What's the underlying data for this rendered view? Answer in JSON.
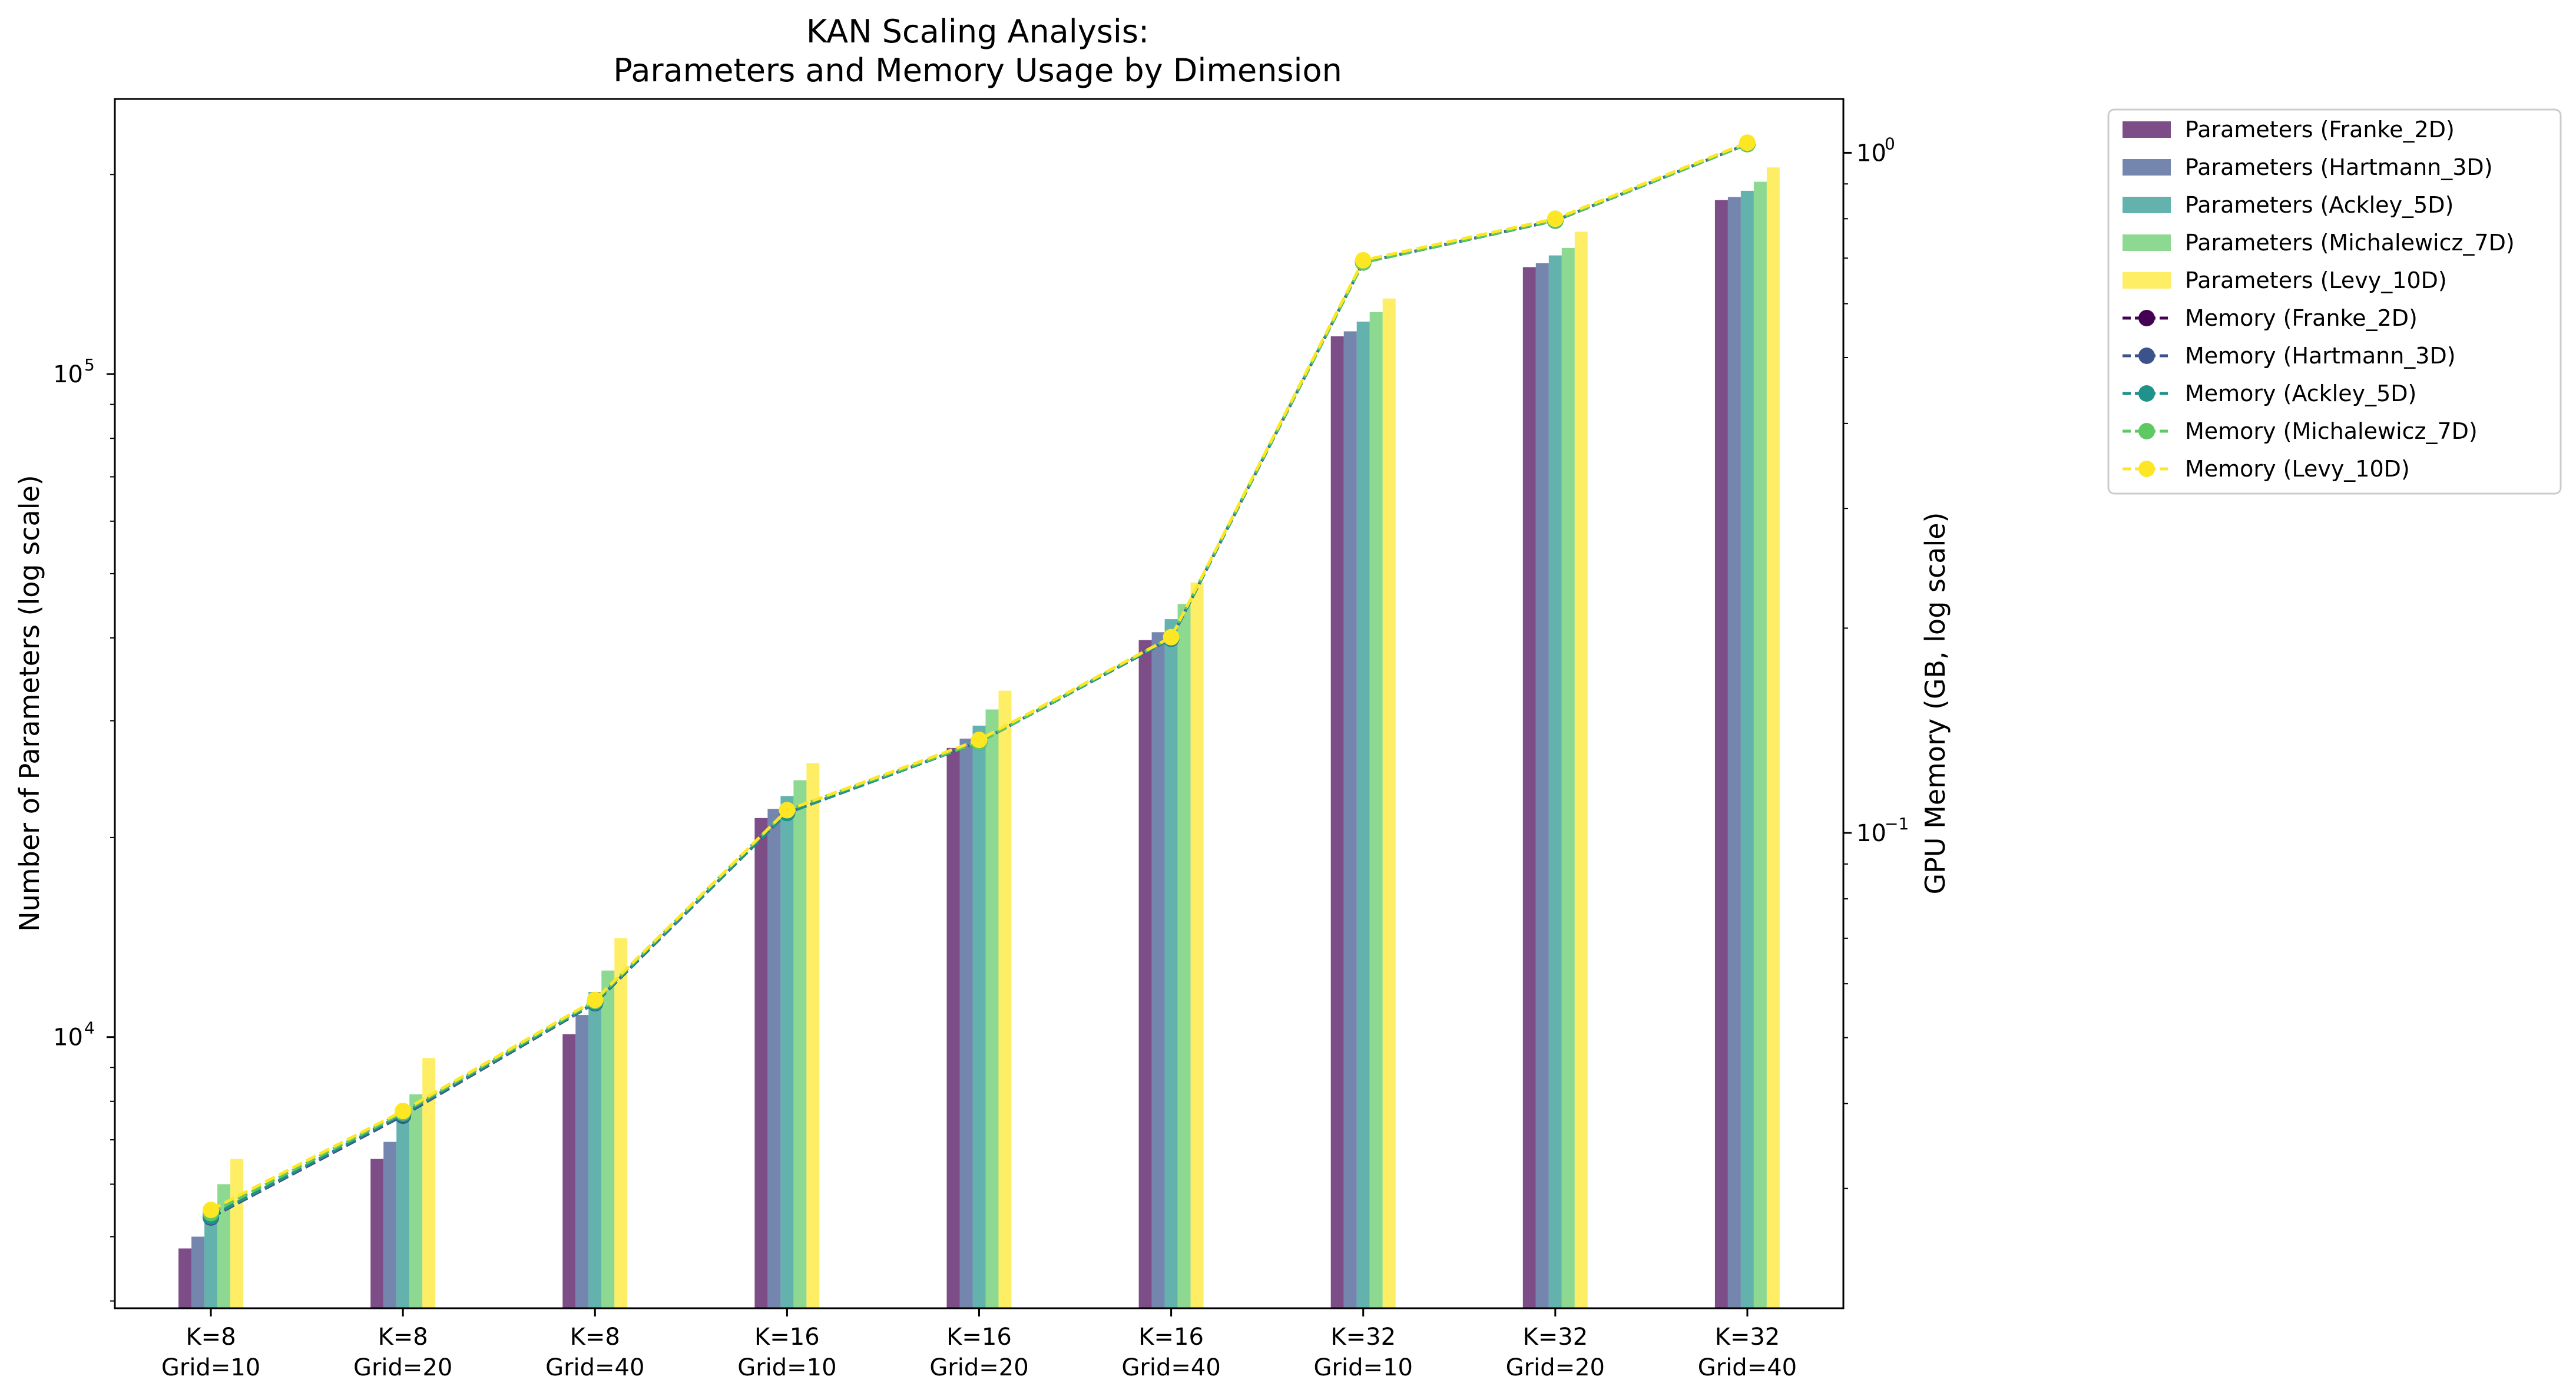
{
  "chart_data": {
    "type": "bar",
    "title_lines": [
      "KAN Scaling Analysis:",
      "Parameters and Memory Usage by Dimension"
    ],
    "categories": [
      [
        "K=8",
        "Grid=10"
      ],
      [
        "K=8",
        "Grid=20"
      ],
      [
        "K=8",
        "Grid=40"
      ],
      [
        "K=16",
        "Grid=10"
      ],
      [
        "K=16",
        "Grid=20"
      ],
      [
        "K=16",
        "Grid=40"
      ],
      [
        "K=32",
        "Grid=10"
      ],
      [
        "K=32",
        "Grid=20"
      ],
      [
        "K=32",
        "Grid=40"
      ]
    ],
    "ylabel_left": "Number of Parameters (log scale)",
    "ylabel_right": "GPU Memory (GB, log scale)",
    "y_left": {
      "scale": "log",
      "range": [
        3900,
        260000
      ],
      "major_ticks": [
        {
          "base": "10",
          "exp": "4",
          "value": 10000
        },
        {
          "base": "10",
          "exp": "5",
          "value": 100000
        }
      ]
    },
    "y_right": {
      "scale": "log",
      "range": [
        0.02,
        1.2
      ],
      "major_ticks": [
        {
          "base": "10",
          "exp": "−1",
          "value": 0.1
        },
        {
          "base": "10",
          "exp": "0",
          "value": 1
        }
      ]
    },
    "bar_series": [
      {
        "name": "Parameters (Franke_2D)",
        "color": "#440154",
        "values": [
          4800,
          6550,
          10100,
          21400,
          27300,
          39700,
          114000,
          145000,
          183000
        ]
      },
      {
        "name": "Parameters (Hartmann_3D)",
        "color": "#3b528b",
        "values": [
          5000,
          6950,
          10800,
          22100,
          28200,
          40800,
          116000,
          147000,
          185000
        ]
      },
      {
        "name": "Parameters (Ackley_5D)",
        "color": "#21918c",
        "values": [
          5500,
          7600,
          11700,
          23100,
          29500,
          42700,
          120000,
          151000,
          189000
        ]
      },
      {
        "name": "Parameters (Michalewicz_7D)",
        "color": "#5ec962",
        "values": [
          6000,
          8200,
          12600,
          24400,
          31200,
          45000,
          124000,
          155000,
          195000
        ]
      },
      {
        "name": "Parameters (Levy_10D)",
        "color": "#fde725",
        "values": [
          6550,
          9300,
          14100,
          25900,
          33300,
          48500,
          130000,
          164000,
          205000
        ]
      }
    ],
    "line_series": [
      {
        "name": "Memory (Franke_2D)",
        "color": "#440154",
        "values": [
          0.0272,
          0.0384,
          0.0562,
          0.107,
          0.136,
          0.193,
          0.69,
          0.795,
          1.03
        ]
      },
      {
        "name": "Memory (Hartmann_3D)",
        "color": "#3b528b",
        "values": [
          0.0272,
          0.0384,
          0.0562,
          0.107,
          0.136,
          0.193,
          0.69,
          0.795,
          1.03
        ]
      },
      {
        "name": "Memory (Ackley_5D)",
        "color": "#21918c",
        "values": [
          0.0273,
          0.0386,
          0.0563,
          0.107,
          0.136,
          0.193,
          0.69,
          0.795,
          1.03
        ]
      },
      {
        "name": "Memory (Michalewicz_7D)",
        "color": "#5ec962",
        "values": [
          0.0276,
          0.0388,
          0.0566,
          0.108,
          0.136,
          0.194,
          0.69,
          0.796,
          1.03
        ]
      },
      {
        "name": "Memory (Levy_10D)",
        "color": "#fde725",
        "values": [
          0.0279,
          0.039,
          0.0568,
          0.108,
          0.137,
          0.194,
          0.695,
          0.8,
          1.035
        ]
      }
    ],
    "grid": false,
    "legend_position": "outside-right"
  }
}
